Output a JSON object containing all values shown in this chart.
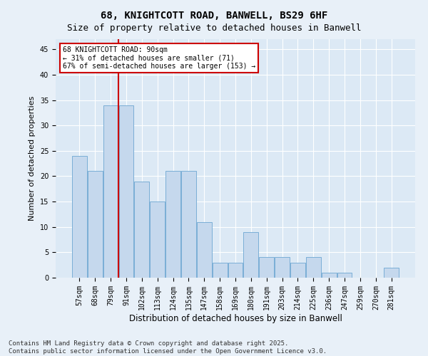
{
  "title1": "68, KNIGHTCOTT ROAD, BANWELL, BS29 6HF",
  "title2": "Size of property relative to detached houses in Banwell",
  "xlabel": "Distribution of detached houses by size in Banwell",
  "ylabel": "Number of detached properties",
  "categories": [
    "57sqm",
    "68sqm",
    "79sqm",
    "91sqm",
    "102sqm",
    "113sqm",
    "124sqm",
    "135sqm",
    "147sqm",
    "158sqm",
    "169sqm",
    "180sqm",
    "191sqm",
    "203sqm",
    "214sqm",
    "225sqm",
    "236sqm",
    "247sqm",
    "259sqm",
    "270sqm",
    "281sqm"
  ],
  "values": [
    24,
    21,
    34,
    34,
    19,
    15,
    21,
    21,
    11,
    3,
    3,
    9,
    4,
    4,
    3,
    4,
    1,
    1,
    0,
    0,
    2
  ],
  "bar_color": "#c5d8ed",
  "bar_edge_color": "#7aaed6",
  "vline_color": "#cc0000",
  "annotation_text": "68 KNIGHTCOTT ROAD: 90sqm\n← 31% of detached houses are smaller (71)\n67% of semi-detached houses are larger (153) →",
  "annotation_box_color": "#ffffff",
  "annotation_box_edge_color": "#cc0000",
  "ylim": [
    0,
    47
  ],
  "yticks": [
    0,
    5,
    10,
    15,
    20,
    25,
    30,
    35,
    40,
    45
  ],
  "fig_bg_color": "#e8f0f8",
  "plot_bg_color": "#dce9f5",
  "grid_color": "#ffffff",
  "footer": "Contains HM Land Registry data © Crown copyright and database right 2025.\nContains public sector information licensed under the Open Government Licence v3.0.",
  "title_fontsize": 10,
  "subtitle_fontsize": 9,
  "tick_fontsize": 7,
  "label_fontsize": 8.5,
  "footer_fontsize": 6.5,
  "ylabel_fontsize": 8
}
